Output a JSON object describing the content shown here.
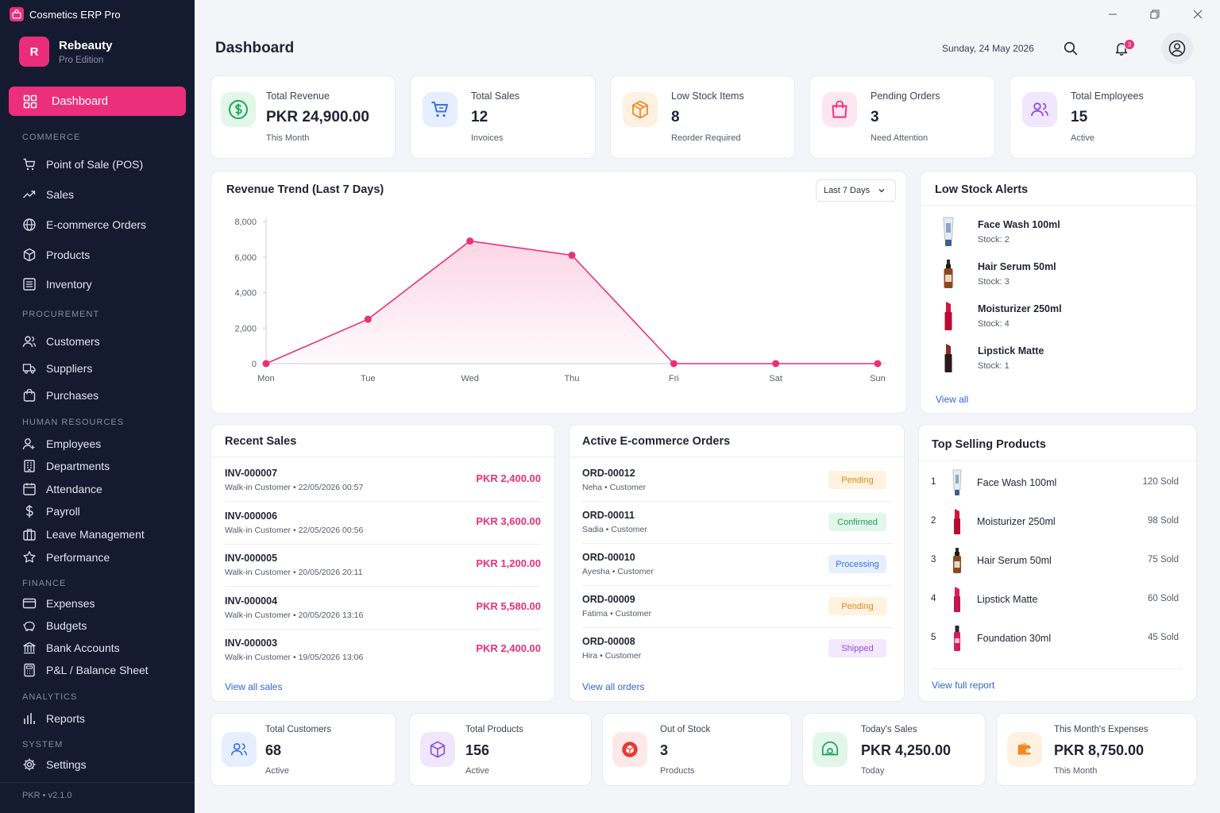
{
  "window": {
    "title": "Cosmetics ERP Pro"
  },
  "brand": {
    "initial": "R",
    "name": "Rebeauty",
    "edition": "Pro Edition"
  },
  "sidebar": {
    "dashboard": "Dashboard",
    "commerce": {
      "label": "COMMERCE",
      "items": [
        "Point of Sale (POS)",
        "Sales",
        "E-commerce Orders",
        "Products",
        "Inventory"
      ]
    },
    "procurement": {
      "label": "PROCUREMENT",
      "items": [
        "Customers",
        "Suppliers",
        "Purchases"
      ]
    },
    "hr": {
      "label": "HUMAN RESOURCES",
      "items": [
        "Employees",
        "Departments",
        "Attendance",
        "Payroll",
        "Leave Management",
        "Performance"
      ]
    },
    "finance": {
      "label": "FINANCE",
      "items": [
        "Expenses",
        "Budgets",
        "Bank Accounts",
        "P&L / Balance Sheet"
      ]
    },
    "analytics": {
      "label": "ANALYTICS",
      "items": [
        "Reports"
      ]
    },
    "system": {
      "label": "SYSTEM",
      "items": [
        "Settings"
      ]
    },
    "footer": "PKR • v2.1.0"
  },
  "header": {
    "title": "Dashboard",
    "date": "Sunday, 24 May 2026",
    "notifications": "3"
  },
  "stats": [
    {
      "label": "Total Revenue",
      "value": "PKR 24,900.00",
      "sub": "This Month",
      "icon": "dollar-icon",
      "color": "#1aa85b"
    },
    {
      "label": "Total Sales",
      "value": "12",
      "sub": "Invoices",
      "icon": "cart-icon",
      "color": "#3b6fe0"
    },
    {
      "label": "Low Stock Items",
      "value": "8",
      "sub": "Reorder Required",
      "icon": "box-icon",
      "color": "#f08a24"
    },
    {
      "label": "Pending Orders",
      "value": "3",
      "sub": "Need Attention",
      "icon": "bag-icon",
      "color": "#ec2f7b"
    },
    {
      "label": "Total Employees",
      "value": "15",
      "sub": "Active",
      "icon": "users-icon",
      "color": "#8a4fe0"
    }
  ],
  "revenue_chart": {
    "title": "Revenue Trend (Last 7 Days)",
    "range": "Last 7 Days",
    "chart_data": {
      "type": "area",
      "categories": [
        "Mon",
        "Tue",
        "Wed",
        "Thu",
        "Fri",
        "Sat",
        "Sun"
      ],
      "values": [
        0,
        2500,
        6900,
        6100,
        0,
        0,
        0
      ],
      "y_ticks": [
        "0",
        "2,000",
        "4,000",
        "6,000",
        "8,000"
      ],
      "ylim": [
        0,
        8000
      ],
      "color": "#ec2f7b"
    }
  },
  "low_stock": {
    "title": "Low Stock Alerts",
    "items": [
      {
        "name": "Face Wash 100ml",
        "stock": "Stock: 2"
      },
      {
        "name": "Hair Serum 50ml",
        "stock": "Stock: 3"
      },
      {
        "name": "Moisturizer 250ml",
        "stock": "Stock: 4"
      },
      {
        "name": "Lipstick Matte",
        "stock": "Stock: 1"
      }
    ],
    "view_all": "View all"
  },
  "recent_sales": {
    "title": "Recent Sales",
    "rows": [
      {
        "id": "INV-000007",
        "customer": "Walk-in Customer",
        "date": "22/05/2026 00:57",
        "amount": "PKR 2,400.00"
      },
      {
        "id": "INV-000006",
        "customer": "Walk-in Customer",
        "date": "22/05/2026 00:56",
        "amount": "PKR 3,600.00"
      },
      {
        "id": "INV-000005",
        "customer": "Walk-in Customer",
        "date": "20/05/2026 20:11",
        "amount": "PKR 1,200.00"
      },
      {
        "id": "INV-000004",
        "customer": "Walk-in Customer",
        "date": "20/05/2026 13:16",
        "amount": "PKR 5,580.00"
      },
      {
        "id": "INV-000003",
        "customer": "Walk-in Customer",
        "date": "19/05/2026 13:06",
        "amount": "PKR 2,400.00"
      }
    ],
    "view_all": "View all sales"
  },
  "ecommerce": {
    "title": "Active E-commerce Orders",
    "rows": [
      {
        "id": "ORD-00012",
        "customer": "Neha",
        "role": "Customer",
        "status": "Pending",
        "bg": "#fff3df",
        "fg": "#e0881a"
      },
      {
        "id": "ORD-00011",
        "customer": "Sadia",
        "role": "Customer",
        "status": "Confirmed",
        "bg": "#e3f6ea",
        "fg": "#1e9e55"
      },
      {
        "id": "ORD-00010",
        "customer": "Ayesha",
        "role": "Customer",
        "status": "Processing",
        "bg": "#e5efff",
        "fg": "#3b6fe0"
      },
      {
        "id": "ORD-00009",
        "customer": "Fatima",
        "role": "Customer",
        "status": "Pending",
        "bg": "#fff3df",
        "fg": "#e0881a"
      },
      {
        "id": "ORD-00008",
        "customer": "Hira",
        "role": "Customer",
        "status": "Shipped",
        "bg": "#f3e8ff",
        "fg": "#8a4fe0"
      }
    ],
    "view_all": "View all orders"
  },
  "top_products": {
    "title": "Top Selling Products",
    "items": [
      {
        "rank": "1",
        "name": "Face Wash 100ml",
        "sold": "120 Sold"
      },
      {
        "rank": "2",
        "name": "Moisturizer 250ml",
        "sold": "98 Sold"
      },
      {
        "rank": "3",
        "name": "Hair Serum 50ml",
        "sold": "75 Sold"
      },
      {
        "rank": "4",
        "name": "Lipstick Matte",
        "sold": "60 Sold"
      },
      {
        "rank": "5",
        "name": "Foundation 30ml",
        "sold": "45 Sold"
      }
    ],
    "view_all": "View full report"
  },
  "bottom_stats": [
    {
      "label": "Total Customers",
      "value": "68",
      "sub": "Active",
      "icon": "customers-icon",
      "color": "#3b6fe0"
    },
    {
      "label": "Total Products",
      "value": "156",
      "sub": "Active",
      "icon": "package-icon",
      "color": "#8a4fe0"
    },
    {
      "label": "Out of Stock",
      "value": "3",
      "sub": "Products",
      "icon": "alert-icon",
      "color": "#e53935"
    },
    {
      "label": "Today's Sales",
      "value": "PKR 4,250.00",
      "sub": "Today",
      "icon": "cash-icon",
      "color": "#1aa85b"
    },
    {
      "label": "This Month's Expenses",
      "value": "PKR 8,750.00",
      "sub": "This Month",
      "icon": "wallet-icon",
      "color": "#f08a24"
    }
  ]
}
